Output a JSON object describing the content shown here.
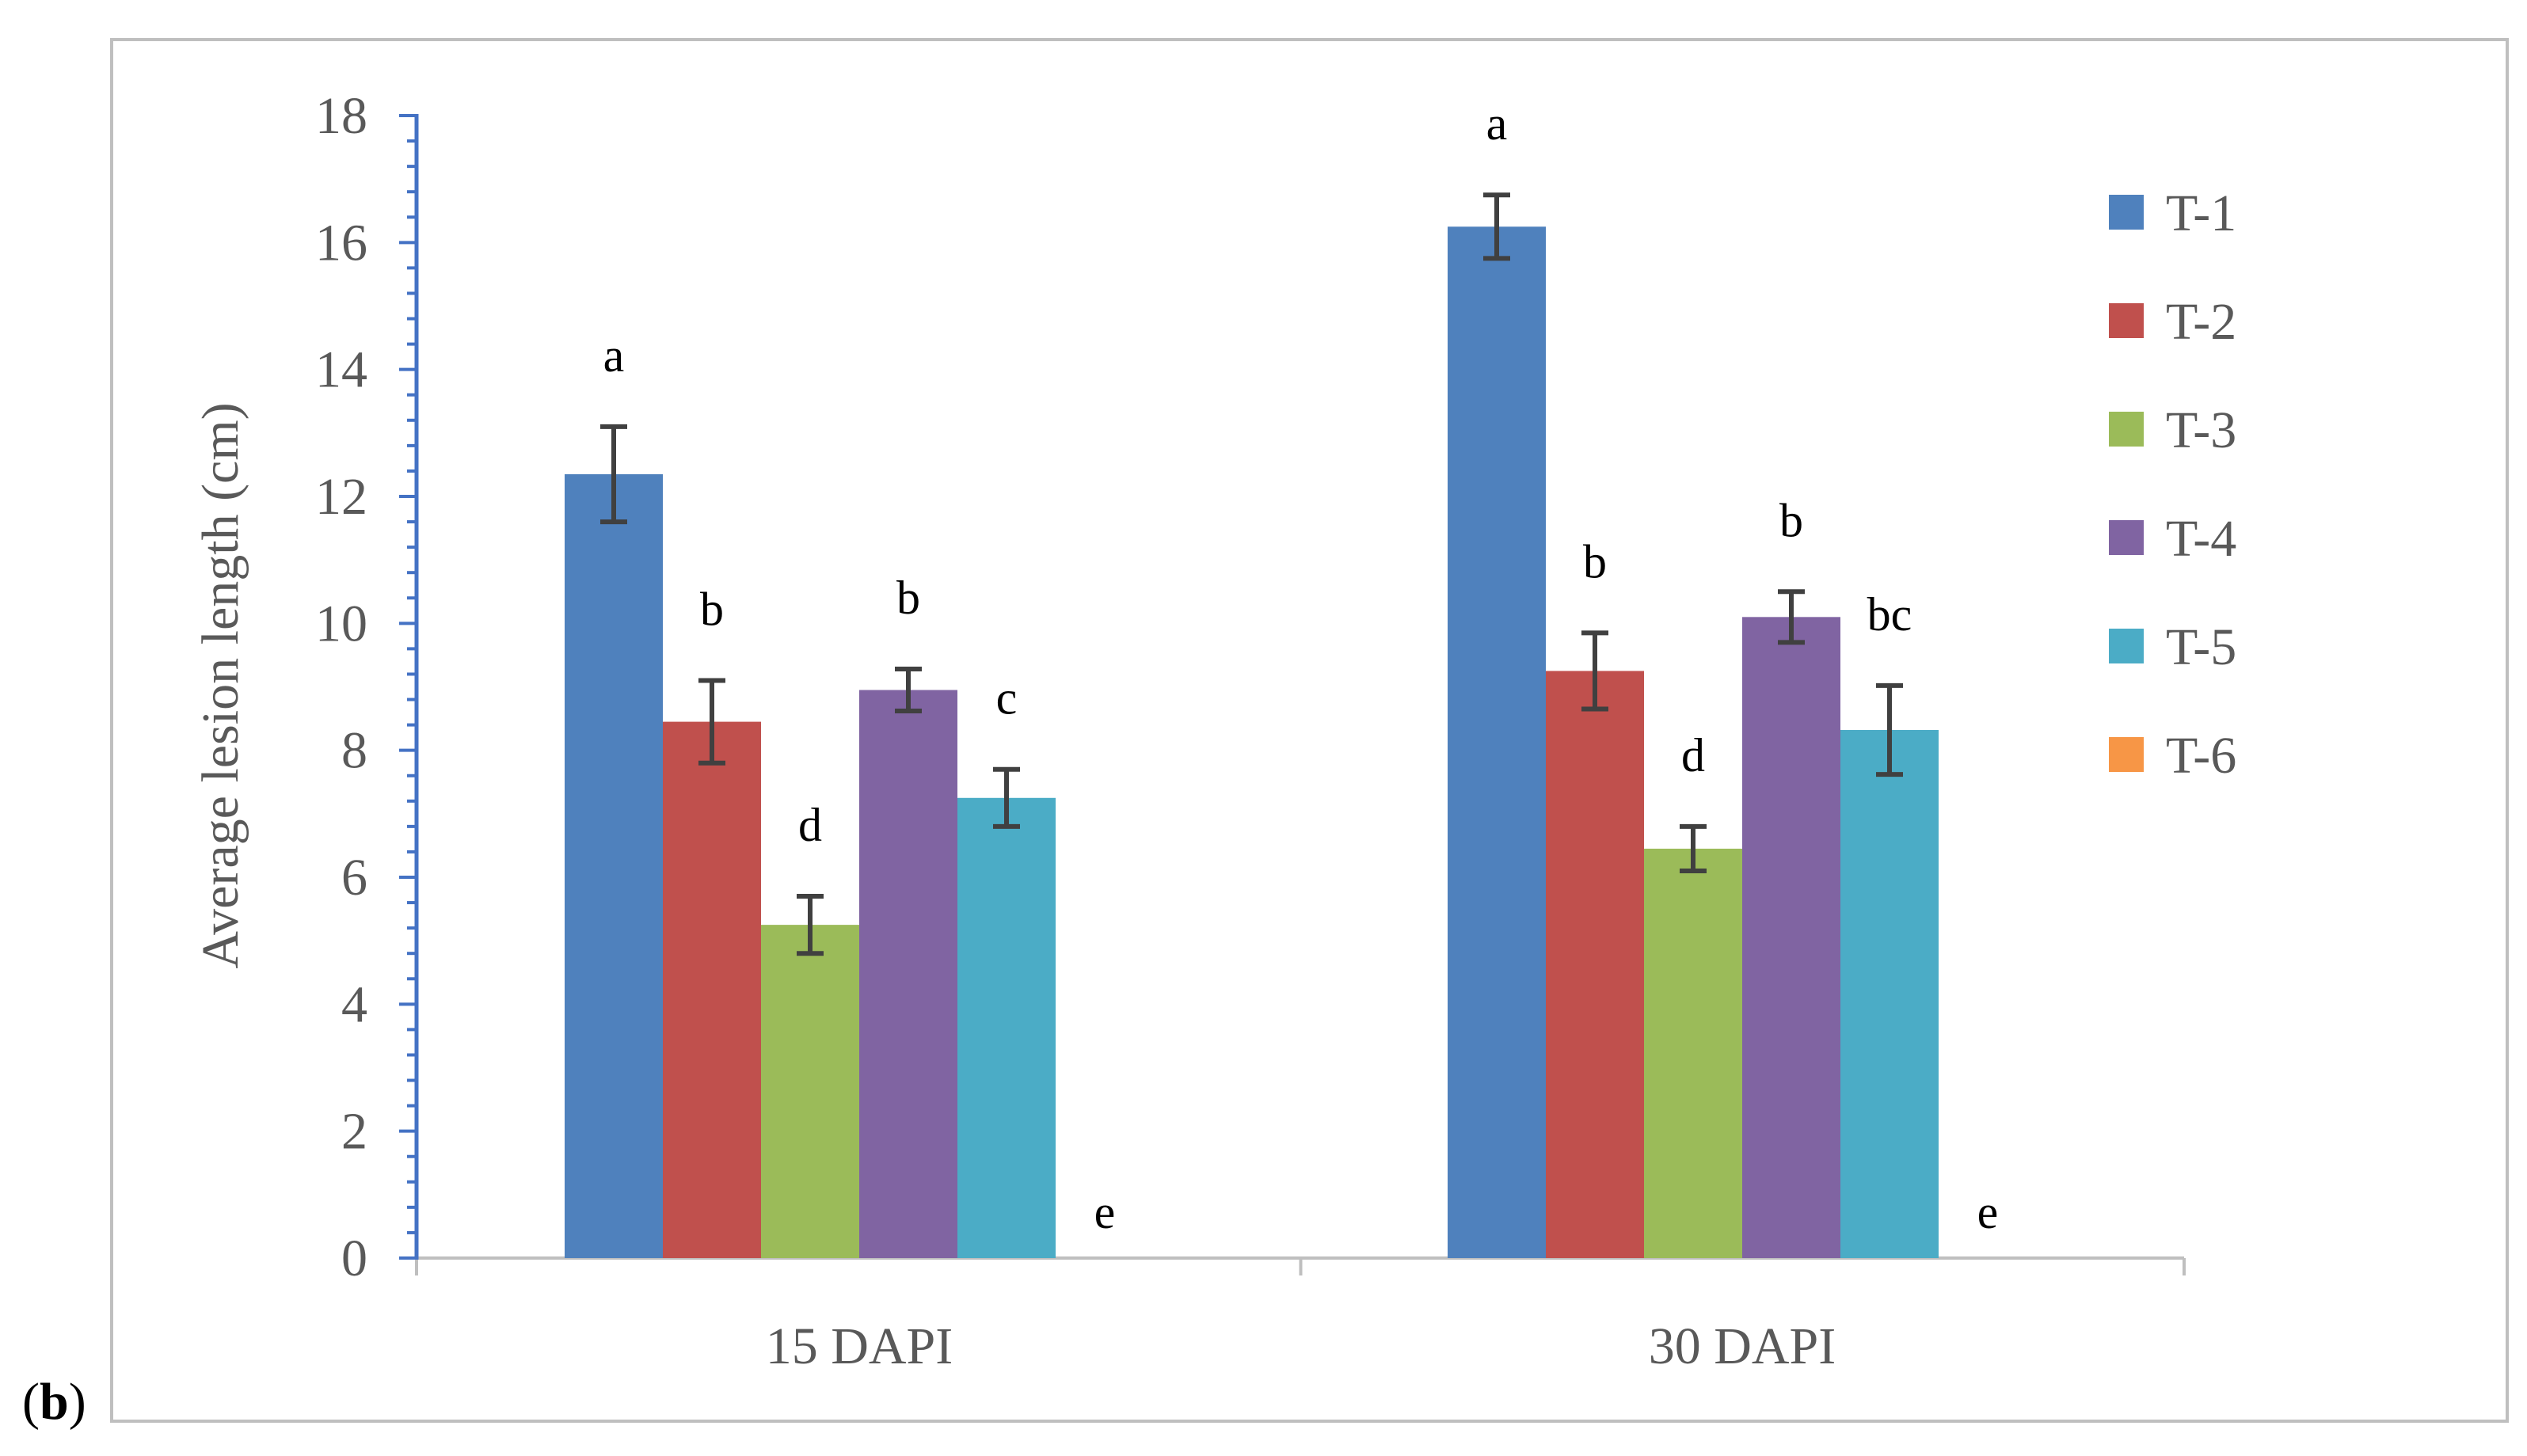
{
  "panel_label": {
    "open": "(",
    "letter": "b",
    "close": ")"
  },
  "chart_data": {
    "type": "bar",
    "title": "",
    "xlabel": "",
    "ylabel": "Average lesion length (cm)",
    "ylim": [
      0,
      18
    ],
    "yticks": [
      0,
      2,
      4,
      6,
      8,
      10,
      12,
      14,
      16,
      18
    ],
    "grid": false,
    "legend_position": "right",
    "categories": [
      "15 DAPI",
      "30 DAPI"
    ],
    "series": [
      {
        "name": "T-1",
        "color": "#4F81BD",
        "values": [
          12.35,
          16.25
        ],
        "errors": [
          0.75,
          0.5
        ],
        "labels": [
          "a",
          "a"
        ]
      },
      {
        "name": "T-2",
        "color": "#C0504D",
        "values": [
          8.45,
          9.25
        ],
        "errors": [
          0.65,
          0.6
        ],
        "labels": [
          "b",
          "b"
        ]
      },
      {
        "name": "T-3",
        "color": "#9BBB59",
        "values": [
          5.25,
          6.45
        ],
        "errors": [
          0.45,
          0.35
        ],
        "labels": [
          "d",
          "d"
        ]
      },
      {
        "name": "T-4",
        "color": "#8064A2",
        "values": [
          8.95,
          10.1
        ],
        "errors": [
          0.33,
          0.4
        ],
        "labels": [
          "b",
          "b"
        ]
      },
      {
        "name": "T-5",
        "color": "#4BACC6",
        "values": [
          7.25,
          8.32
        ],
        "errors": [
          0.45,
          0.7
        ],
        "labels": [
          "c",
          "bc"
        ]
      },
      {
        "name": "T-6",
        "color": "#F79646",
        "values": [
          0,
          0
        ],
        "errors": [
          0,
          0
        ],
        "labels": [
          "e",
          "e"
        ]
      }
    ],
    "axis_color": "#4472C4",
    "errorbar_color": "#404040"
  }
}
